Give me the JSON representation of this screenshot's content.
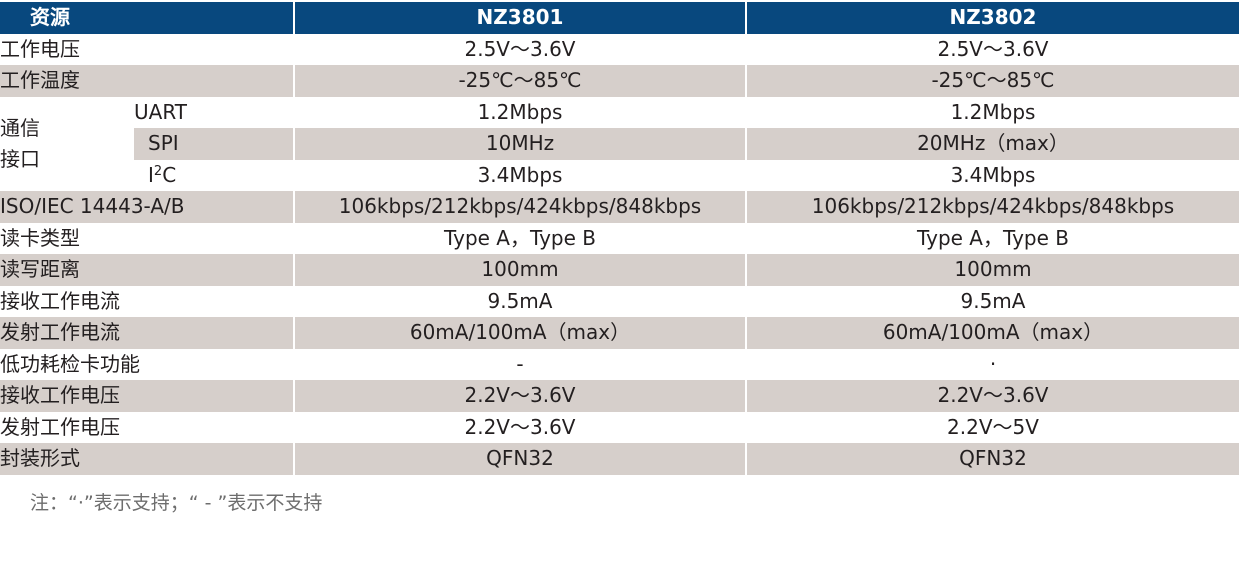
{
  "header": {
    "resource": "资源",
    "col1": "NZ3801",
    "col2": "NZ3802"
  },
  "rows_before": [
    {
      "label": "工作电压",
      "v1": "2.5V～3.6V",
      "v2": "2.5V～3.6V"
    },
    {
      "label": "工作温度",
      "v1": "-25℃～85℃",
      "v2": "-25℃～85℃"
    }
  ],
  "comm": {
    "label_line1": "通信",
    "label_line2": "接口",
    "uart": {
      "label": "UART",
      "v1": "1.2Mbps",
      "v2": "1.2Mbps"
    },
    "spi": {
      "label": "SPI",
      "v1": "10MHz",
      "v2": "20MHz（max）"
    },
    "i2c": {
      "label_prefix": "I",
      "label_sup": "2",
      "label_suffix": "C",
      "v1": "3.4Mbps",
      "v2": "3.4Mbps"
    }
  },
  "rows_after": [
    {
      "label": "ISO/IEC 14443-A/B",
      "v1": "106kbps/212kbps/424kbps/848kbps",
      "v2": "106kbps/212kbps/424kbps/848kbps"
    },
    {
      "label": "读卡类型",
      "v1": "Type A，Type B",
      "v2": "Type A，Type B"
    },
    {
      "label": "读写距离",
      "v1": "100mm",
      "v2": "100mm"
    },
    {
      "label": "接收工作电流",
      "v1": "9.5mA",
      "v2": "9.5mA"
    },
    {
      "label": "发射工作电流",
      "v1": "60mA/100mA（max）",
      "v2": "60mA/100mA（max）"
    },
    {
      "label": "低功耗检卡功能",
      "v1": "-",
      "v2": "·"
    },
    {
      "label": "接收工作电压",
      "v1": "2.2V～3.6V",
      "v2": "2.2V～3.6V"
    },
    {
      "label": "发射工作电压",
      "v1": "2.2V～3.6V",
      "v2": "2.2V～5V"
    },
    {
      "label": "封装形式",
      "v1": "QFN32",
      "v2": "QFN32"
    }
  ],
  "note": "注：“·”表示支持；“ - ”表示不支持"
}
